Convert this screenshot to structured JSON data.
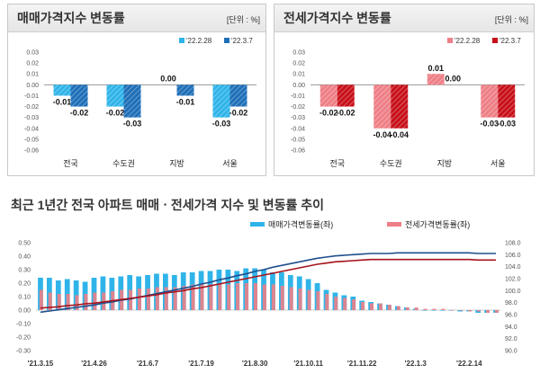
{
  "panels": [
    {
      "title": "매매가격지수 변동률",
      "unit": "[단위 : %]",
      "legend": [
        "'22.2.28",
        "'22.3.7"
      ],
      "colors": [
        "#2fb4e9",
        "#1f6fb8"
      ]
    },
    {
      "title": "전세가격지수 변동률",
      "unit": "[단위 : %]",
      "legend": [
        "'22.2.28",
        "'22.3.7"
      ],
      "colors": [
        "#ee7f86",
        "#c8101a"
      ]
    }
  ],
  "bottom": {
    "title": "최근 1년간 전국 아파트 매매ㆍ전세가격 지수 및 변동률 추이",
    "legend": [
      "매매가격변동률(좌)",
      "전세가격변동률(좌)"
    ],
    "colors": {
      "sale_bar": "#2fb4e9",
      "jeonse_bar": "#ee7f86",
      "sale_line": "#1f4e8c",
      "jeonse_line": "#a6121b"
    }
  },
  "chart_data": [
    {
      "type": "bar",
      "title": "매매가격지수 변동률",
      "categories": [
        "전국",
        "수도권",
        "지방",
        "서울"
      ],
      "series": [
        {
          "name": "'22.2.28",
          "values": [
            -0.01,
            -0.02,
            0.0,
            -0.03
          ]
        },
        {
          "name": "'22.3.7",
          "values": [
            -0.02,
            -0.03,
            -0.01,
            -0.02
          ]
        }
      ],
      "data_labels": [
        [
          "-0.01",
          "-0.02",
          "0.00",
          "-0.03"
        ],
        [
          "-0.02",
          "-0.03",
          "-0.01",
          "-0.02"
        ]
      ],
      "yticks": [
        "0.03",
        "0.02",
        "0.01",
        "0.00",
        "-0.01",
        "-0.02",
        "-0.03",
        "-0.04",
        "-0.05",
        "-0.06"
      ],
      "ylim": [
        -0.06,
        0.03
      ]
    },
    {
      "type": "bar",
      "title": "전세가격지수 변동률",
      "categories": [
        "전국",
        "수도권",
        "지방",
        "서울"
      ],
      "series": [
        {
          "name": "'22.2.28",
          "values": [
            -0.02,
            -0.04,
            0.01,
            -0.03
          ]
        },
        {
          "name": "'22.3.7",
          "values": [
            -0.02,
            -0.04,
            0.0,
            -0.03
          ]
        }
      ],
      "data_labels": [
        [
          "-0.02",
          "-0.04",
          "0.01",
          "-0.03"
        ],
        [
          "-0.02",
          "-0.04",
          "0.00",
          "-0.03"
        ]
      ],
      "yticks": [
        "0.03",
        "0.02",
        "0.01",
        "0.00",
        "-0.01",
        "-0.02",
        "-0.03",
        "-0.04",
        "-0.05",
        "-0.06"
      ],
      "ylim": [
        -0.06,
        0.03
      ]
    },
    {
      "type": "bar",
      "title": "최근 1년간 전국 아파트 매매ㆍ전세가격 지수 및 변동률 추이",
      "x_labels": [
        "'21.3.15",
        "'21.4.26",
        "'21.6.7",
        "'21.7.19",
        "'21.8.30",
        "'21.10.11",
        "'21.11.22",
        "'22.1.3",
        "'22.2.14"
      ],
      "left_yticks": [
        "0.50",
        "0.40",
        "0.30",
        "0.20",
        "0.10",
        "0.00",
        "-0.10",
        "-0.20",
        "-0.30"
      ],
      "left_ylim": [
        -0.3,
        0.5
      ],
      "right_yticks": [
        "108.0",
        "106.0",
        "104.0",
        "102.0",
        "100.0",
        "98.0",
        "96.0",
        "94.0",
        "92.0",
        "90.0"
      ],
      "right_ylim": [
        90,
        108
      ],
      "series": [
        {
          "name": "매매가격변동률(좌)",
          "axis": "left",
          "kind": "bar",
          "values": [
            0.24,
            0.24,
            0.22,
            0.23,
            0.22,
            0.21,
            0.24,
            0.25,
            0.24,
            0.25,
            0.26,
            0.25,
            0.26,
            0.27,
            0.27,
            0.26,
            0.28,
            0.28,
            0.29,
            0.29,
            0.3,
            0.3,
            0.29,
            0.31,
            0.31,
            0.3,
            0.28,
            0.28,
            0.26,
            0.25,
            0.23,
            0.2,
            0.15,
            0.13,
            0.11,
            0.1,
            0.07,
            0.06,
            0.05,
            0.04,
            0.03,
            0.02,
            0.01,
            0.0,
            0.0,
            0.0,
            0.0,
            -0.01,
            -0.01,
            -0.02,
            -0.02,
            -0.02
          ]
        },
        {
          "name": "전세가격변동률(좌)",
          "axis": "left",
          "kind": "bar",
          "values": [
            0.15,
            0.13,
            0.12,
            0.12,
            0.11,
            0.12,
            0.13,
            0.13,
            0.14,
            0.15,
            0.15,
            0.16,
            0.16,
            0.17,
            0.17,
            0.17,
            0.18,
            0.19,
            0.19,
            0.19,
            0.2,
            0.19,
            0.2,
            0.2,
            0.2,
            0.19,
            0.19,
            0.18,
            0.17,
            0.16,
            0.15,
            0.14,
            0.12,
            0.1,
            0.09,
            0.08,
            0.06,
            0.05,
            0.05,
            0.04,
            0.03,
            0.02,
            0.02,
            0.01,
            0.01,
            0.01,
            0.0,
            0.0,
            -0.01,
            -0.01,
            -0.02,
            -0.02
          ]
        },
        {
          "name": "매매가격지수",
          "axis": "right",
          "kind": "line",
          "values": [
            96.4,
            96.6,
            96.8,
            97.0,
            97.2,
            97.4,
            97.6,
            97.9,
            98.1,
            98.4,
            98.6,
            98.9,
            99.2,
            99.5,
            99.8,
            100.1,
            100.4,
            100.7,
            101.1,
            101.4,
            101.8,
            102.1,
            102.5,
            102.8,
            103.2,
            103.5,
            103.9,
            104.2,
            104.5,
            104.8,
            105.1,
            105.4,
            105.6,
            105.8,
            105.9,
            106.0,
            106.1,
            106.2,
            106.2,
            106.2,
            106.3,
            106.3,
            106.3,
            106.3,
            106.3,
            106.3,
            106.3,
            106.3,
            106.3,
            106.2,
            106.2,
            106.2
          ]
        },
        {
          "name": "전세가격지수",
          "axis": "right",
          "kind": "line",
          "values": [
            97.1,
            97.2,
            97.3,
            97.5,
            97.6,
            97.8,
            97.9,
            98.1,
            98.3,
            98.5,
            98.7,
            98.9,
            99.1,
            99.3,
            99.6,
            99.8,
            100.0,
            100.3,
            100.5,
            100.8,
            101.1,
            101.4,
            101.7,
            102.0,
            102.3,
            102.6,
            102.9,
            103.2,
            103.5,
            103.8,
            104.1,
            104.4,
            104.6,
            104.8,
            104.9,
            105.0,
            105.1,
            105.2,
            105.2,
            105.2,
            105.2,
            105.2,
            105.2,
            105.2,
            105.2,
            105.2,
            105.2,
            105.2,
            105.2,
            105.1,
            105.1,
            105.1
          ]
        }
      ]
    }
  ]
}
